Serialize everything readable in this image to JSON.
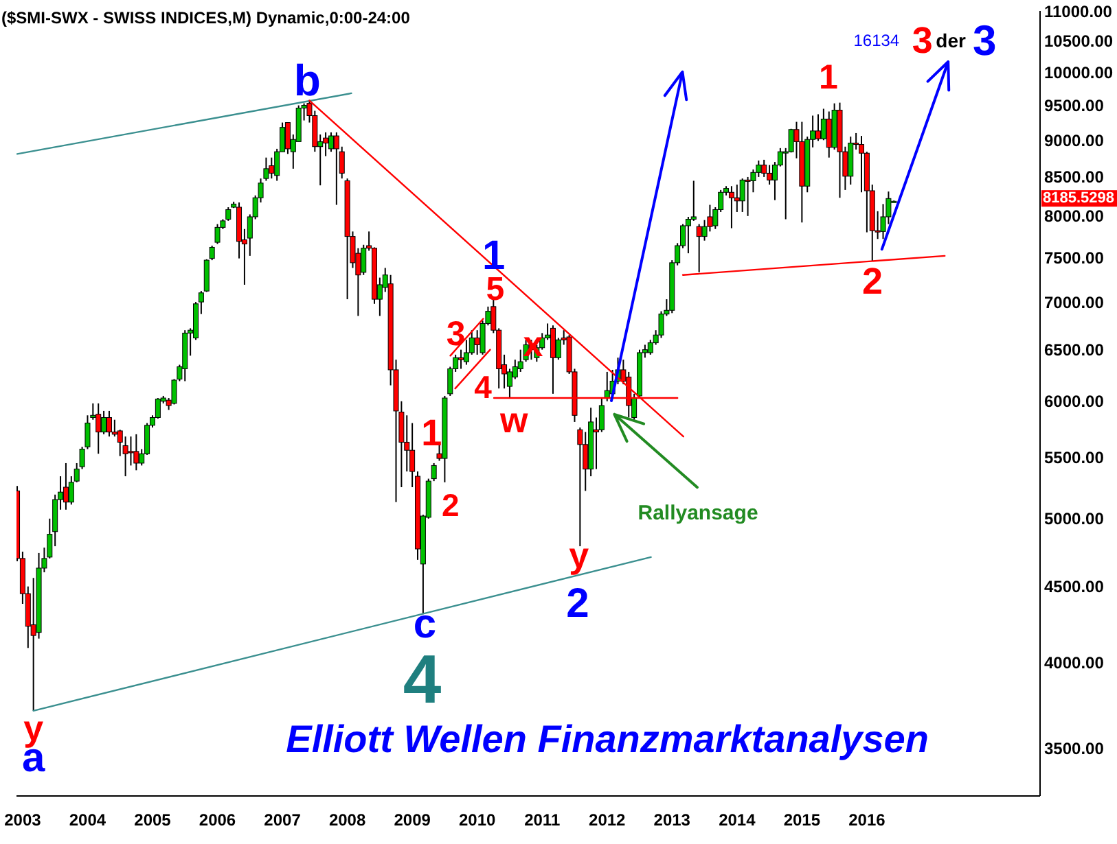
{
  "chart_data": {
    "type": "candlestick",
    "title": "($SMI-SWX - SWISS INDICES,M) Dynamic,0:00-24:00",
    "x": [
      "2002-12",
      "2003-01",
      "2003-02",
      "2003-03",
      "2003-04",
      "2003-05",
      "2003-06",
      "2003-07",
      "2003-08",
      "2003-09",
      "2003-10",
      "2003-11",
      "2003-12",
      "2004-01",
      "2004-02",
      "2004-03",
      "2004-04",
      "2004-05",
      "2004-06",
      "2004-07",
      "2004-08",
      "2004-09",
      "2004-10",
      "2004-11",
      "2004-12",
      "2005-01",
      "2005-02",
      "2005-03",
      "2005-04",
      "2005-05",
      "2005-06",
      "2005-07",
      "2005-08",
      "2005-09",
      "2005-10",
      "2005-11",
      "2005-12",
      "2006-01",
      "2006-02",
      "2006-03",
      "2006-04",
      "2006-05",
      "2006-06",
      "2006-07",
      "2006-08",
      "2006-09",
      "2006-10",
      "2006-11",
      "2006-12",
      "2007-01",
      "2007-02",
      "2007-03",
      "2007-04",
      "2007-05",
      "2007-06",
      "2007-07",
      "2007-08",
      "2007-09",
      "2007-10",
      "2007-11",
      "2007-12",
      "2008-01",
      "2008-02",
      "2008-03",
      "2008-04",
      "2008-05",
      "2008-06",
      "2008-07",
      "2008-08",
      "2008-09",
      "2008-10",
      "2008-11",
      "2008-12",
      "2009-01",
      "2009-02",
      "2009-03",
      "2009-04",
      "2009-05",
      "2009-06",
      "2009-07",
      "2009-08",
      "2009-09",
      "2009-10",
      "2009-11",
      "2009-12",
      "2010-01",
      "2010-02",
      "2010-03",
      "2010-04",
      "2010-05",
      "2010-06",
      "2010-07",
      "2010-08",
      "2010-09",
      "2010-10",
      "2010-11",
      "2010-12",
      "2011-01",
      "2011-02",
      "2011-03",
      "2011-04",
      "2011-05",
      "2011-06",
      "2011-07",
      "2011-08",
      "2011-09",
      "2011-10",
      "2011-11",
      "2011-12",
      "2012-01",
      "2012-02",
      "2012-03",
      "2012-04",
      "2012-05",
      "2012-06",
      "2012-07",
      "2012-08",
      "2012-09",
      "2012-10",
      "2012-11",
      "2012-12",
      "2013-01",
      "2013-02",
      "2013-03",
      "2013-04",
      "2013-05",
      "2013-06",
      "2013-07",
      "2013-08",
      "2013-09",
      "2013-10",
      "2013-11",
      "2013-12",
      "2014-01",
      "2014-02",
      "2014-03",
      "2014-04",
      "2014-05",
      "2014-06",
      "2014-07",
      "2014-08",
      "2014-09",
      "2014-10",
      "2014-11",
      "2014-12",
      "2015-01",
      "2015-02",
      "2015-03",
      "2015-04",
      "2015-05",
      "2015-06",
      "2015-07",
      "2015-08",
      "2015-09",
      "2015-10",
      "2015-11",
      "2015-12",
      "2016-01",
      "2016-02",
      "2016-03",
      "2016-04",
      "2016-05",
      "2016-06"
    ],
    "ohlc": [
      [
        5220,
        5260,
        4680,
        4700
      ],
      [
        4700,
        4750,
        4380,
        4450
      ],
      [
        4450,
        4500,
        4090,
        4230
      ],
      [
        4240,
        4560,
        3710,
        4170
      ],
      [
        4190,
        4740,
        4150,
        4630
      ],
      [
        4630,
        4780,
        4600,
        4700
      ],
      [
        4710,
        5000,
        4700,
        4880
      ],
      [
        4900,
        5190,
        4790,
        5150
      ],
      [
        5150,
        5340,
        5070,
        5210
      ],
      [
        5250,
        5450,
        5070,
        5130
      ],
      [
        5130,
        5340,
        5110,
        5290
      ],
      [
        5300,
        5450,
        5290,
        5400
      ],
      [
        5420,
        5590,
        5400,
        5570
      ],
      [
        5590,
        5870,
        5570,
        5800
      ],
      [
        5850,
        5980,
        5830,
        5870
      ],
      [
        5880,
        5980,
        5530,
        5720
      ],
      [
        5720,
        5910,
        5700,
        5850
      ],
      [
        5850,
        5910,
        5680,
        5720
      ],
      [
        5720,
        5830,
        5680,
        5700
      ],
      [
        5730,
        5740,
        5510,
        5630
      ],
      [
        5600,
        5680,
        5340,
        5530
      ],
      [
        5550,
        5680,
        5430,
        5540
      ],
      [
        5550,
        5700,
        5390,
        5450
      ],
      [
        5450,
        5570,
        5430,
        5530
      ],
      [
        5530,
        5800,
        5520,
        5780
      ],
      [
        5780,
        5870,
        5760,
        5850
      ],
      [
        5850,
        6030,
        5840,
        6020
      ],
      [
        6000,
        6050,
        5980,
        6030
      ],
      [
        6010,
        6030,
        5920,
        5960
      ],
      [
        5980,
        6210,
        5970,
        6200
      ],
      [
        6210,
        6350,
        6190,
        6330
      ],
      [
        6310,
        6700,
        6190,
        6670
      ],
      [
        6670,
        6720,
        6440,
        6700
      ],
      [
        6620,
        7000,
        6600,
        6980
      ],
      [
        7000,
        7120,
        6870,
        7100
      ],
      [
        7120,
        7480,
        7110,
        7470
      ],
      [
        7490,
        7640,
        7470,
        7620
      ],
      [
        7680,
        7900,
        7660,
        7860
      ],
      [
        7860,
        7960,
        7840,
        7940
      ],
      [
        7960,
        8110,
        7940,
        8080
      ],
      [
        8110,
        8180,
        8100,
        8150
      ],
      [
        8110,
        8170,
        7490,
        7690
      ],
      [
        7710,
        7840,
        7190,
        7660
      ],
      [
        7730,
        8020,
        7520,
        7990
      ],
      [
        7990,
        8260,
        7960,
        8230
      ],
      [
        8230,
        8480,
        8170,
        8420
      ],
      [
        8480,
        8760,
        8450,
        8610
      ],
      [
        8650,
        8760,
        8480,
        8550
      ],
      [
        8520,
        8880,
        8450,
        8840
      ],
      [
        8840,
        9250,
        8840,
        9180
      ],
      [
        9250,
        9250,
        8810,
        8880
      ],
      [
        8840,
        9080,
        8610,
        9010
      ],
      [
        8980,
        9500,
        8980,
        9460
      ],
      [
        9460,
        9530,
        9280,
        9500
      ],
      [
        9530,
        9580,
        9250,
        9350
      ],
      [
        9350,
        9420,
        8840,
        8910
      ],
      [
        8910,
        9080,
        8390,
        8980
      ],
      [
        9030,
        9110,
        8780,
        8960
      ],
      [
        8880,
        9110,
        8840,
        9060
      ],
      [
        9060,
        9110,
        8140,
        8880
      ],
      [
        8840,
        8910,
        8480,
        8550
      ],
      [
        8450,
        8480,
        7030,
        7750
      ],
      [
        7750,
        7810,
        7380,
        7440
      ],
      [
        7550,
        7610,
        6850,
        7300
      ],
      [
        7330,
        7650,
        7300,
        7610
      ],
      [
        7640,
        7810,
        7580,
        7610
      ],
      [
        7610,
        7620,
        6980,
        7030
      ],
      [
        7030,
        7270,
        6850,
        7190
      ],
      [
        7160,
        7380,
        7110,
        7300
      ],
      [
        7200,
        7300,
        6150,
        6300
      ],
      [
        6300,
        6400,
        5130,
        5910
      ],
      [
        5900,
        6000,
        5250,
        5630
      ],
      [
        5630,
        5870,
        5380,
        5560
      ],
      [
        5560,
        5800,
        5250,
        5380
      ],
      [
        5340,
        5380,
        4690,
        4770
      ],
      [
        4660,
        5030,
        4310,
        5020
      ],
      [
        5010,
        5320,
        5000,
        5300
      ],
      [
        5320,
        5450,
        5300,
        5430
      ],
      [
        5530,
        5610,
        5470,
        5490
      ],
      [
        5490,
        6050,
        5290,
        6030
      ],
      [
        6070,
        6330,
        6050,
        6310
      ],
      [
        6310,
        6450,
        6280,
        6420
      ],
      [
        6420,
        6500,
        6310,
        6400
      ],
      [
        6380,
        6600,
        6350,
        6470
      ],
      [
        6470,
        6700,
        6450,
        6620
      ],
      [
        6620,
        6700,
        6450,
        6550
      ],
      [
        6470,
        6800,
        6450,
        6770
      ],
      [
        6770,
        6950,
        6750,
        6900
      ],
      [
        6950,
        7030,
        6670,
        6700
      ],
      [
        6700,
        6720,
        6120,
        6310
      ],
      [
        6350,
        6450,
        6120,
        6260
      ],
      [
        6140,
        6310,
        6030,
        6280
      ],
      [
        6230,
        6400,
        6210,
        6330
      ],
      [
        6310,
        6500,
        6280,
        6380
      ],
      [
        6400,
        6600,
        6380,
        6550
      ],
      [
        6550,
        6600,
        6400,
        6500
      ],
      [
        6420,
        6550,
        6380,
        6520
      ],
      [
        6520,
        6670,
        6500,
        6620
      ],
      [
        6620,
        6770,
        6600,
        6650
      ],
      [
        6720,
        6750,
        6070,
        6420
      ],
      [
        6420,
        6620,
        6400,
        6600
      ],
      [
        6620,
        6700,
        6550,
        6600
      ],
      [
        6630,
        6650,
        6260,
        6280
      ],
      [
        6280,
        6310,
        5810,
        5870
      ],
      [
        5740,
        5760,
        4790,
        5610
      ],
      [
        5610,
        5720,
        5220,
        5400
      ],
      [
        5400,
        5940,
        5340,
        5810
      ],
      [
        5740,
        5850,
        5400,
        5720
      ],
      [
        5740,
        6030,
        5720,
        5960
      ],
      [
        6030,
        6280,
        6000,
        6100
      ],
      [
        6070,
        6300,
        6050,
        6190
      ],
      [
        6190,
        6420,
        6160,
        6300
      ],
      [
        6300,
        6400,
        6160,
        6190
      ],
      [
        6230,
        6280,
        5850,
        5960
      ],
      [
        5850,
        6070,
        5830,
        6030
      ],
      [
        6050,
        6500,
        6030,
        6470
      ],
      [
        6470,
        6550,
        6420,
        6500
      ],
      [
        6470,
        6600,
        6450,
        6570
      ],
      [
        6570,
        6700,
        6550,
        6650
      ],
      [
        6650,
        6900,
        6620,
        6870
      ],
      [
        6870,
        7030,
        6850,
        6910
      ],
      [
        6910,
        7470,
        6880,
        7440
      ],
      [
        7440,
        7670,
        7410,
        7640
      ],
      [
        7640,
        7900,
        7610,
        7880
      ],
      [
        7880,
        7990,
        7550,
        7960
      ],
      [
        7960,
        8450,
        7940,
        7990
      ],
      [
        7870,
        7900,
        7330,
        7750
      ],
      [
        7750,
        7950,
        7700,
        7870
      ],
      [
        7990,
        8140,
        7810,
        7870
      ],
      [
        7880,
        8110,
        7840,
        8080
      ],
      [
        8080,
        8330,
        8050,
        8300
      ],
      [
        8300,
        8380,
        8260,
        8350
      ],
      [
        8300,
        8380,
        7850,
        8230
      ],
      [
        8230,
        8400,
        8050,
        8190
      ],
      [
        8190,
        8480,
        8050,
        8460
      ],
      [
        8460,
        8500,
        8000,
        8450
      ],
      [
        8450,
        8600,
        8300,
        8560
      ],
      [
        8560,
        8720,
        8500,
        8660
      ],
      [
        8660,
        8730,
        8500,
        8550
      ],
      [
        8550,
        8660,
        8400,
        8460
      ],
      [
        8460,
        8700,
        8200,
        8660
      ],
      [
        8660,
        8890,
        8640,
        8840
      ],
      [
        8830,
        8890,
        7960,
        8840
      ],
      [
        8840,
        9160,
        8830,
        9150
      ],
      [
        9150,
        9260,
        8750,
        8980
      ],
      [
        8980,
        9260,
        7920,
        8380
      ],
      [
        8380,
        9050,
        8300,
        9010
      ],
      [
        9010,
        9350,
        8900,
        9130
      ],
      [
        9130,
        9370,
        8990,
        9020
      ],
      [
        9020,
        9450,
        9000,
        9300
      ],
      [
        9300,
        9410,
        8760,
        8900
      ],
      [
        8900,
        9530,
        8870,
        9430
      ],
      [
        9430,
        9540,
        8230,
        8840
      ],
      [
        8840,
        8910,
        8330,
        8510
      ],
      [
        8510,
        9050,
        8400,
        8960
      ],
      [
        8960,
        9100,
        8870,
        8940
      ],
      [
        8940,
        9060,
        8300,
        8820
      ],
      [
        8820,
        8840,
        7800,
        8320
      ],
      [
        8320,
        8400,
        7460,
        7820
      ],
      [
        7820,
        8060,
        7720,
        7810
      ],
      [
        7810,
        8150,
        7720,
        7990
      ],
      [
        7990,
        8310,
        7900,
        8220
      ],
      [
        8180,
        8195,
        8175,
        8185.5298
      ]
    ],
    "colors": [
      "#ff0000",
      "#ff0000",
      "#ff0000",
      "#ff0000",
      "#00c000",
      "#00c000",
      "#00c000",
      "#00c000",
      "#00c000",
      "#ff0000",
      "#00c000",
      "#00c000",
      "#00c000",
      "#00c000",
      "#00c000",
      "#ff0000",
      "#00c000",
      "#ff0000",
      "#ff0000",
      "#ff0000",
      "#ff0000",
      "#ff0000",
      "#ff0000",
      "#00c000",
      "#00c000",
      "#00c000",
      "#00c000",
      "#00c000",
      "#ff0000",
      "#00c000",
      "#00c000",
      "#00c000",
      "#00c000",
      "#00c000",
      "#00c000",
      "#00c000",
      "#00c000",
      "#00c000",
      "#00c000",
      "#00c000",
      "#00c000",
      "#ff0000",
      "#ff0000",
      "#00c000",
      "#00c000",
      "#00c000",
      "#00c000",
      "#ff0000",
      "#00c000",
      "#00c000",
      "#ff0000",
      "#00c000",
      "#00c000",
      "#00c000",
      "#ff0000",
      "#ff0000",
      "#00c000",
      "#ff0000",
      "#00c000",
      "#ff0000",
      "#ff0000",
      "#ff0000",
      "#ff0000",
      "#ff0000",
      "#00c000",
      "#ff0000",
      "#ff0000",
      "#00c000",
      "#00c000",
      "#ff0000",
      "#ff0000",
      "#ff0000",
      "#ff0000",
      "#ff0000",
      "#ff0000",
      "#00c000",
      "#00c000",
      "#00c000",
      "#ff0000",
      "#00c000",
      "#00c000",
      "#00c000",
      "#ff0000",
      "#00c000",
      "#00c000",
      "#ff0000",
      "#00c000",
      "#00c000",
      "#ff0000",
      "#ff0000",
      "#ff0000",
      "#00c000",
      "#00c000",
      "#00c000",
      "#00c000",
      "#ff0000",
      "#00c000",
      "#00c000",
      "#00c000",
      "#ff0000",
      "#00c000",
      "#ff0000",
      "#ff0000",
      "#ff0000",
      "#ff0000",
      "#ff0000",
      "#00c000",
      "#ff0000",
      "#00c000",
      "#00c000",
      "#00c000",
      "#00c000",
      "#ff0000",
      "#ff0000",
      "#00c000",
      "#00c000",
      "#00c000",
      "#00c000",
      "#00c000",
      "#00c000",
      "#00c000",
      "#00c000",
      "#00c000",
      "#00c000",
      "#00c000",
      "#00c000",
      "#ff0000",
      "#00c000",
      "#ff0000",
      "#00c000",
      "#00c000",
      "#00c000",
      "#ff0000",
      "#ff0000",
      "#00c000",
      "#ff0000",
      "#00c000",
      "#00c000",
      "#ff0000",
      "#ff0000",
      "#00c000",
      "#00c000",
      "#00c000",
      "#00c000",
      "#ff0000",
      "#ff0000",
      "#00c000",
      "#00c000",
      "#ff0000",
      "#00c000",
      "#ff0000",
      "#00c000",
      "#ff0000",
      "#ff0000",
      "#00c000",
      "#ff0000",
      "#ff0000",
      "#ff0000",
      "#ff0000",
      "#ff0000",
      "#00c000",
      "#00c000",
      "#00c000"
    ],
    "xlim": [
      "2002-11-27",
      "2018-09"
    ],
    "xticks": [
      "2003",
      "2004",
      "2005",
      "2006",
      "2007",
      "2008",
      "2009",
      "2010",
      "2011",
      "2012",
      "2013",
      "2014",
      "2015",
      "2016"
    ],
    "ylim": [
      3250,
      11000
    ],
    "yticks": [
      {
        "value": 3500,
        "label": "3500.00"
      },
      {
        "value": 4000,
        "label": "4000.00"
      },
      {
        "value": 4500,
        "label": "4500.00"
      },
      {
        "value": 5000,
        "label": "5000.00"
      },
      {
        "value": 5500,
        "label": "5500.00"
      },
      {
        "value": 6000,
        "label": "6000.00"
      },
      {
        "value": 6500,
        "label": "6500.00"
      },
      {
        "value": 7000,
        "label": "7000.00"
      },
      {
        "value": 7500,
        "label": "7500.00"
      },
      {
        "value": 8000,
        "label": "8000.00"
      },
      {
        "value": 8500,
        "label": "8500.00"
      },
      {
        "value": 9000,
        "label": "9000.00"
      },
      {
        "value": 9500,
        "label": "9500.00"
      },
      {
        "value": 10000,
        "label": "10000.00"
      },
      {
        "value": 10500,
        "label": "10500.00"
      },
      {
        "value": 11000,
        "label": "11000.00"
      }
    ],
    "log": true,
    "marker": "none",
    "series": [
      {
        "type": "line",
        "color": "#3a8f8f",
        "x": [
          "2002-12",
          "2008-01-24"
        ],
        "values": [
          8810,
          9680
        ]
      },
      {
        "type": "line",
        "color": "#3a8f8f",
        "x": [
          "2003-03",
          "2012-09-04"
        ],
        "values": [
          3710,
          4710
        ]
      },
      {
        "type": "line",
        "color": "#ff0000",
        "x": [
          "2007-06",
          "2013-03-04"
        ],
        "values": [
          9570,
          5680
        ]
      },
      {
        "type": "line",
        "color": "#ff0000",
        "x": [
          "2010-04-04",
          "2013-02-01"
        ],
        "values": [
          6030,
          6030
        ]
      },
      {
        "type": "line",
        "color": "#ff0000",
        "x": [
          "2013-03",
          "2017-03-13"
        ],
        "values": [
          7300,
          7520
        ]
      },
      {
        "type": "line",
        "color": "#ff0000",
        "x": [
          "2009-08-02",
          "2010-02-04"
        ],
        "values": [
          6440,
          6820
        ]
      },
      {
        "type": "line",
        "color": "#ff0000",
        "x": [
          "2009-08-30",
          "2010-03-13"
        ],
        "values": [
          6120,
          6500
        ]
      }
    ],
    "annotations": [
      "b",
      "y",
      "a",
      "c",
      "4",
      "1",
      "5",
      "3",
      "4",
      "w",
      "1",
      "2",
      "x",
      "y",
      "2",
      "Rallyansage",
      "1",
      "2",
      "16134",
      "3",
      "der",
      "3",
      "8185.5298",
      "Elliott Wellen Finanzmarktanalysen"
    ]
  }
}
